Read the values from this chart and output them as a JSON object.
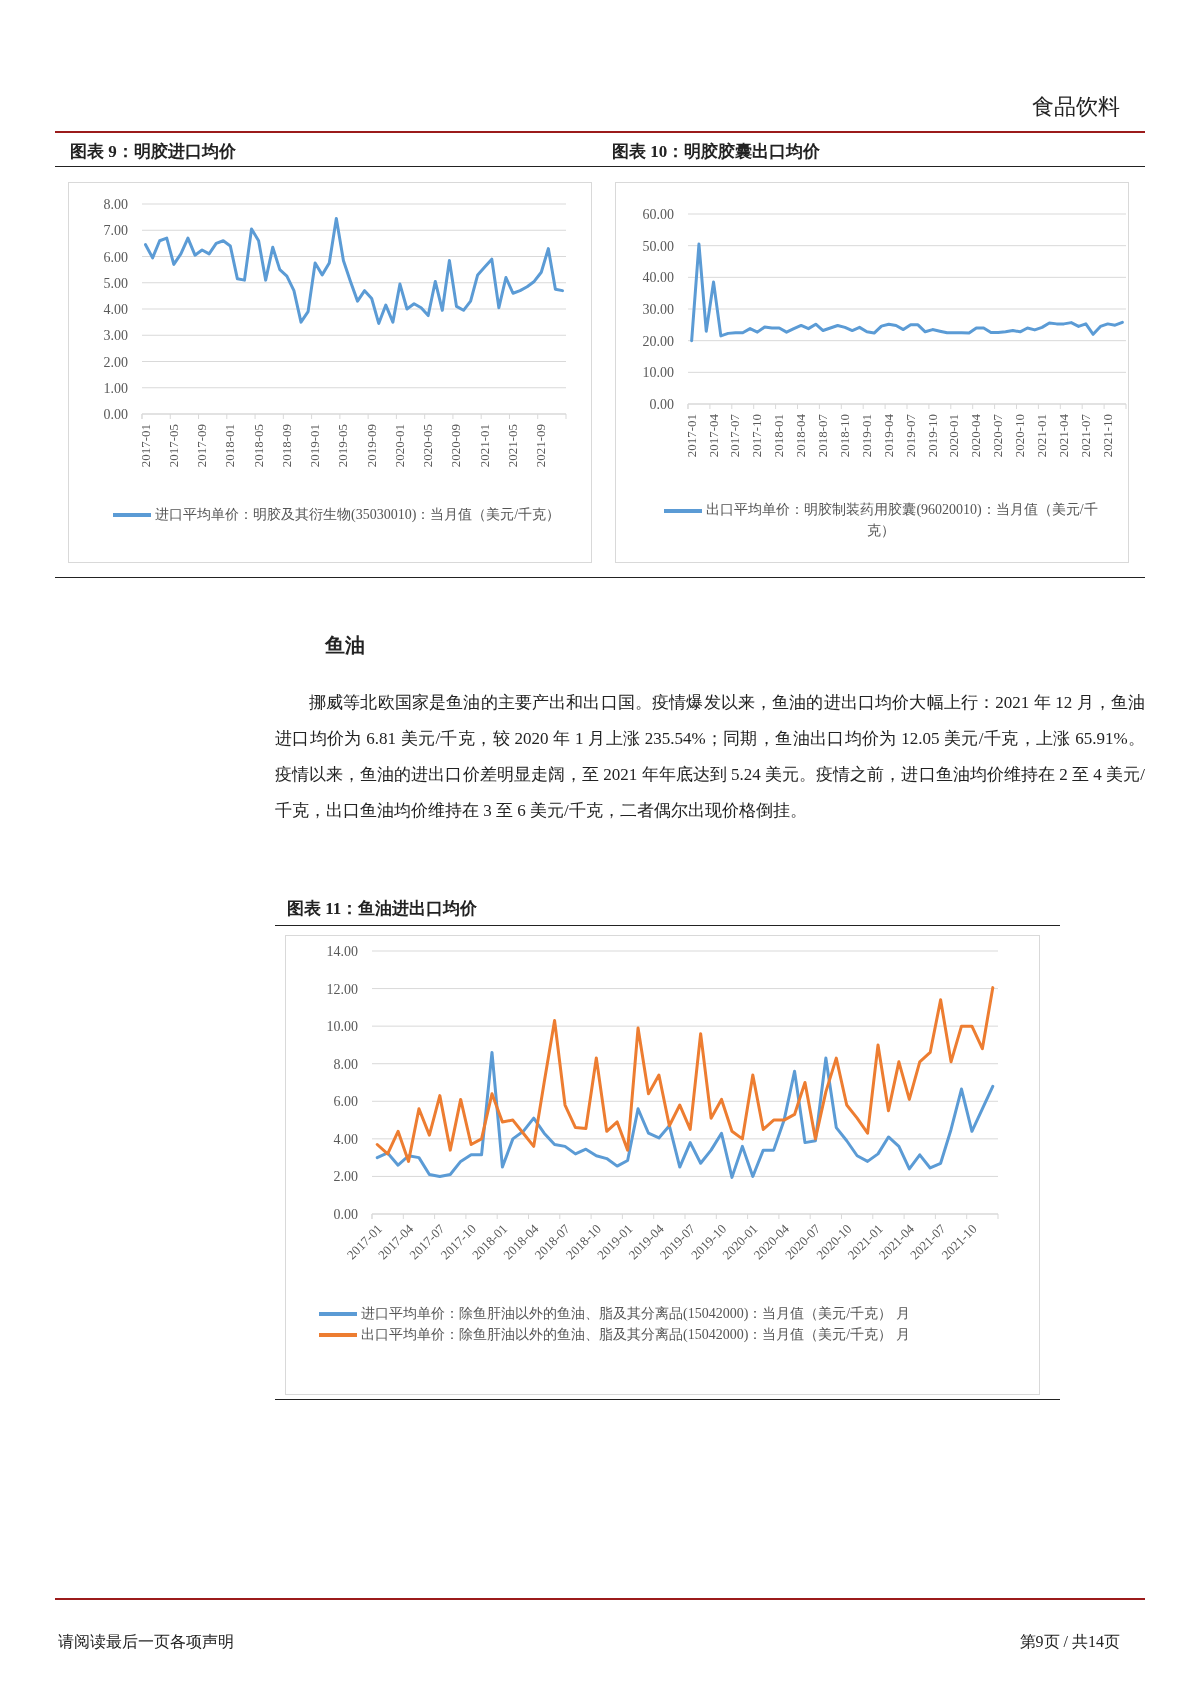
{
  "chart_data": [
    {
      "type": "line",
      "title": "图表 9：明胶进口均价",
      "annotations": [
        "食品饮料",
        "请阅读最后一页各项声明",
        "第9页 / 共14页"
      ],
      "categories": [
        "2017-01",
        null,
        null,
        null,
        "2017-05",
        null,
        null,
        null,
        "2017-09",
        null,
        null,
        null,
        "2018-01",
        null,
        null,
        null,
        "2018-05",
        null,
        null,
        null,
        "2018-09",
        null,
        null,
        null,
        "2019-01",
        null,
        null,
        null,
        "2019-05",
        null,
        null,
        null,
        "2019-09",
        null,
        null,
        null,
        "2020-01",
        null,
        null,
        null,
        "2020-05",
        null,
        null,
        null,
        "2020-09",
        null,
        null,
        null,
        "2021-01",
        null,
        null,
        null,
        "2021-05",
        null,
        null,
        null,
        "2021-09",
        null,
        null,
        null
      ],
      "series": [
        {
          "name": "进口平均单价：明胶及其衍生物(35030010)：当月值（美元/千克）",
          "color": "#5b9bd5",
          "values": [
            6.45,
            5.95,
            6.6,
            6.7,
            5.7,
            6.1,
            6.7,
            6.05,
            6.25,
            6.1,
            6.5,
            6.6,
            6.4,
            5.15,
            5.1,
            7.05,
            6.6,
            5.1,
            6.35,
            5.5,
            5.25,
            4.7,
            3.5,
            3.9,
            5.75,
            5.3,
            5.75,
            7.45,
            5.85,
            5.05,
            4.3,
            4.7,
            4.4,
            3.45,
            4.15,
            3.5,
            4.95,
            4.0,
            4.2,
            4.05,
            3.75,
            5.05,
            3.95,
            5.85,
            4.1,
            3.95,
            4.3,
            5.3,
            5.6,
            5.9,
            4.05,
            5.2,
            4.6,
            4.7,
            4.85,
            5.05,
            5.4,
            6.3,
            4.75,
            4.7
          ]
        }
      ],
      "ylim": [
        0,
        8
      ],
      "yticks": [
        {
          "value": 0,
          "label": "0.00"
        },
        {
          "value": 1,
          "label": "1.00"
        },
        {
          "value": 2,
          "label": "2.00"
        },
        {
          "value": 3,
          "label": "3.00"
        },
        {
          "value": 4,
          "label": "4.00"
        },
        {
          "value": 5,
          "label": "5.00"
        },
        {
          "value": 6,
          "label": "6.00"
        },
        {
          "value": 7,
          "label": "7.00"
        },
        {
          "value": 8,
          "label": "8.00"
        }
      ],
      "grid": "y",
      "legend": "bottom"
    },
    {
      "type": "line",
      "title": "图表 10：明胶胶囊出口均价",
      "categories": [
        "2017-01",
        null,
        null,
        "2017-04",
        null,
        null,
        "2017-07",
        null,
        null,
        "2017-10",
        null,
        null,
        "2018-01",
        null,
        null,
        "2018-04",
        null,
        null,
        "2018-07",
        null,
        null,
        "2018-10",
        null,
        null,
        "2019-01",
        null,
        null,
        "2019-04",
        null,
        null,
        "2019-07",
        null,
        null,
        "2019-10",
        null,
        null,
        "2020-01",
        null,
        null,
        "2020-04",
        null,
        null,
        "2020-07",
        null,
        null,
        "2020-10",
        null,
        null,
        "2021-01",
        null,
        null,
        "2021-04",
        null,
        null,
        "2021-07",
        null,
        null,
        "2021-10",
        null,
        null
      ],
      "series": [
        {
          "name": "出口平均单价：明胶制装药用胶囊(96020010)：当月值（美元/千克）",
          "color": "#5b9bd5",
          "values": [
            20.0,
            50.5,
            23.0,
            38.5,
            21.5,
            22.3,
            22.5,
            22.5,
            23.8,
            22.7,
            24.3,
            24.0,
            24.0,
            22.7,
            23.8,
            24.8,
            23.8,
            25.2,
            23.2,
            24.0,
            24.8,
            24.2,
            23.2,
            24.2,
            22.8,
            22.4,
            24.6,
            25.2,
            24.8,
            23.5,
            25.0,
            25.0,
            22.8,
            23.5,
            23.0,
            22.5,
            22.5,
            22.5,
            22.4,
            24.0,
            24.0,
            22.6,
            22.6,
            22.8,
            23.2,
            22.8,
            24.0,
            23.4,
            24.2,
            25.6,
            25.3,
            25.3,
            25.7,
            24.5,
            25.3,
            22.0,
            24.5,
            25.3,
            24.9,
            25.8
          ]
        }
      ],
      "ylim": [
        0,
        60
      ],
      "yticks": [
        {
          "value": 0,
          "label": "0.00"
        },
        {
          "value": 10,
          "label": "10.00"
        },
        {
          "value": 20,
          "label": "20.00"
        },
        {
          "value": 30,
          "label": "30.00"
        },
        {
          "value": 40,
          "label": "40.00"
        },
        {
          "value": 50,
          "label": "50.00"
        },
        {
          "value": 60,
          "label": "60.00"
        }
      ],
      "grid": "y",
      "legend": "bottom"
    },
    {
      "type": "line",
      "title": "图表 11：鱼油进出口均价",
      "annotations": [
        "鱼油",
        "挪威等北欧国家是鱼油的主要产出和出口国。疫情爆发以来，鱼油的进出口均价大幅上行：2021 年 12 月，鱼油进口均价为 6.81 美元/千克，较 2020 年 1 月上涨 235.54%；同期，鱼油出口均价为 12.05 美元/千克，上涨 65.91%。疫情以来，鱼油的进出口价差明显走阔，至 2021 年年底达到 5.24 美元。疫情之前，进口鱼油均价维持在 2 至 4 美元/千克，出口鱼油均价维持在 3 至 6 美元/千克，二者偶尔出现价格倒挂。"
      ],
      "categories": [
        "2017-01",
        null,
        null,
        "2017-04",
        null,
        null,
        "2017-07",
        null,
        null,
        "2017-10",
        null,
        null,
        "2018-01",
        null,
        null,
        "2018-04",
        null,
        null,
        "2018-07",
        null,
        null,
        "2018-10",
        null,
        null,
        "2019-01",
        null,
        null,
        "2019-04",
        null,
        null,
        "2019-07",
        null,
        null,
        "2019-10",
        null,
        null,
        "2020-01",
        null,
        null,
        "2020-04",
        null,
        null,
        "2020-07",
        null,
        null,
        "2020-10",
        null,
        null,
        "2021-01",
        null,
        null,
        "2021-04",
        null,
        null,
        "2021-07",
        null,
        null,
        "2021-10",
        null,
        null
      ],
      "series": [
        {
          "name": "进口平均单价：除鱼肝油以外的鱼油、脂及其分离品(15042000)：当月值（美元/千克） 月",
          "color": "#5b9bd5",
          "values": [
            3.0,
            3.25,
            2.6,
            3.1,
            3.0,
            2.1,
            2.0,
            2.1,
            2.8,
            3.15,
            3.15,
            8.6,
            2.5,
            4.0,
            4.4,
            5.1,
            4.3,
            3.7,
            3.6,
            3.2,
            3.45,
            3.1,
            2.95,
            2.55,
            2.85,
            5.6,
            4.3,
            4.05,
            4.7,
            2.5,
            3.8,
            2.7,
            3.4,
            4.3,
            1.95,
            3.6,
            2.0,
            3.4,
            3.4,
            5.0,
            7.6,
            3.8,
            3.9,
            8.3,
            4.6,
            3.9,
            3.1,
            2.8,
            3.2,
            4.1,
            3.6,
            2.4,
            3.15,
            2.45,
            2.7,
            4.5,
            6.65,
            4.4,
            5.6,
            6.8
          ]
        },
        {
          "name": "出口平均单价：除鱼肝油以外的鱼油、脂及其分离品(15042000)：当月值（美元/千克） 月",
          "color": "#ed7d31",
          "values": [
            3.7,
            3.2,
            4.4,
            2.8,
            5.6,
            4.2,
            6.3,
            3.4,
            6.1,
            3.7,
            4.0,
            6.4,
            4.9,
            5.0,
            4.3,
            3.6,
            7.0,
            10.3,
            5.8,
            4.6,
            4.55,
            8.3,
            4.4,
            4.9,
            3.4,
            9.9,
            6.4,
            7.4,
            4.7,
            5.8,
            4.5,
            9.6,
            5.1,
            6.1,
            4.4,
            4.0,
            7.4,
            4.5,
            5.0,
            5.0,
            5.3,
            7.0,
            4.0,
            6.5,
            8.3,
            5.8,
            5.1,
            4.3,
            9.0,
            5.5,
            8.1,
            6.1,
            8.1,
            8.6,
            11.4,
            8.1,
            10.0,
            10.0,
            8.8,
            12.05
          ]
        }
      ],
      "ylim": [
        0,
        14
      ],
      "yticks": [
        {
          "value": 0,
          "label": "0.00"
        },
        {
          "value": 2,
          "label": "2.00"
        },
        {
          "value": 4,
          "label": "4.00"
        },
        {
          "value": 6,
          "label": "6.00"
        },
        {
          "value": 8,
          "label": "8.00"
        },
        {
          "value": 10,
          "label": "10.00"
        },
        {
          "value": 12,
          "label": "12.00"
        },
        {
          "value": 14,
          "label": "14.00"
        }
      ],
      "grid": "y",
      "legend": "bottom"
    }
  ]
}
